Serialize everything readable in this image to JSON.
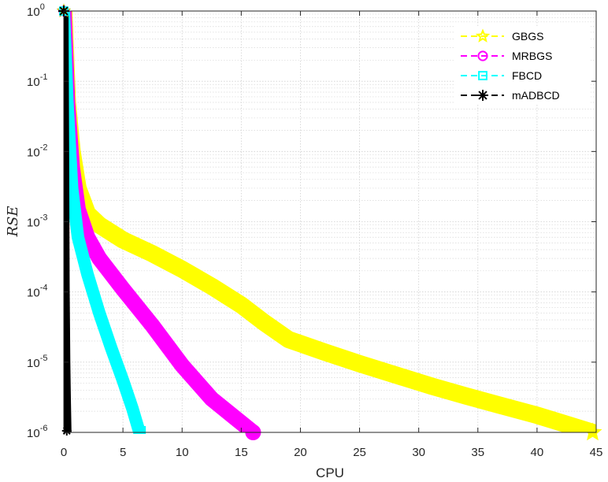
{
  "chart_data": {
    "type": "line",
    "title": "",
    "xlabel": "CPU",
    "ylabel": "RSE",
    "xlim": [
      0,
      45
    ],
    "ylim": [
      1e-06,
      1
    ],
    "yscale": "log",
    "grid": true,
    "minor_grid": true,
    "legend_position": "top-right",
    "x_ticks": [
      0,
      5,
      10,
      15,
      20,
      25,
      30,
      35,
      40,
      45
    ],
    "x_tick_labels": [
      "0",
      "5",
      "10",
      "15",
      "20",
      "25",
      "30",
      "35",
      "40",
      "45"
    ],
    "y_ticks": [
      {
        "value": 1e-06,
        "base": "10",
        "exp": "-6"
      },
      {
        "value": 1e-05,
        "base": "10",
        "exp": "-5"
      },
      {
        "value": 0.0001,
        "base": "10",
        "exp": "-4"
      },
      {
        "value": 0.001,
        "base": "10",
        "exp": "-3"
      },
      {
        "value": 0.01,
        "base": "10",
        "exp": "-2"
      },
      {
        "value": 0.1,
        "base": "10",
        "exp": "-1"
      },
      {
        "value": 1,
        "base": "10",
        "exp": "0"
      }
    ],
    "series": [
      {
        "name": "GBGS",
        "color": "#ffff00",
        "marker": "star",
        "x": [
          0,
          0.3,
          0.7,
          1.2,
          2,
          3,
          5,
          7.5,
          10,
          12.5,
          15,
          17,
          19,
          22,
          25,
          28,
          31,
          34,
          37,
          40,
          42.5,
          44.7
        ],
        "y": [
          1,
          0.05,
          0.01,
          0.003,
          0.0013,
          0.0009,
          0.00055,
          0.00035,
          0.00021,
          0.00012,
          6.5e-05,
          3.6e-05,
          2.1e-05,
          1.4e-05,
          9.5e-06,
          6.6e-06,
          4.6e-06,
          3.3e-06,
          2.4e-06,
          1.75e-06,
          1.3e-06,
          1e-06
        ]
      },
      {
        "name": "MRBGS",
        "color": "#ff00ff",
        "marker": "circle",
        "x": [
          0,
          0.3,
          0.7,
          1.2,
          2,
          3,
          5,
          7.5,
          10,
          12.5,
          14.5,
          16
        ],
        "y": [
          1,
          0.05,
          0.006,
          0.0015,
          0.0006,
          0.0003,
          0.00011,
          3.3e-05,
          9e-06,
          3e-06,
          1.6e-06,
          1e-06
        ]
      },
      {
        "name": "FBCD",
        "color": "#00ffff",
        "marker": "square",
        "x": [
          0,
          0.3,
          0.7,
          1.2,
          2,
          3,
          4,
          5,
          5.8,
          6.4
        ],
        "y": [
          1,
          0.05,
          0.003,
          0.0006,
          0.00018,
          5e-05,
          1.6e-05,
          5.5e-06,
          2.2e-06,
          1e-06
        ]
      },
      {
        "name": "mADBCD",
        "color": "#000000",
        "marker": "asterisk",
        "x": [
          0,
          0.05,
          0.1,
          0.15,
          0.2,
          0.25
        ],
        "y": [
          1,
          0.01,
          0.0001,
          1e-05,
          3e-06,
          1e-06
        ]
      }
    ]
  }
}
